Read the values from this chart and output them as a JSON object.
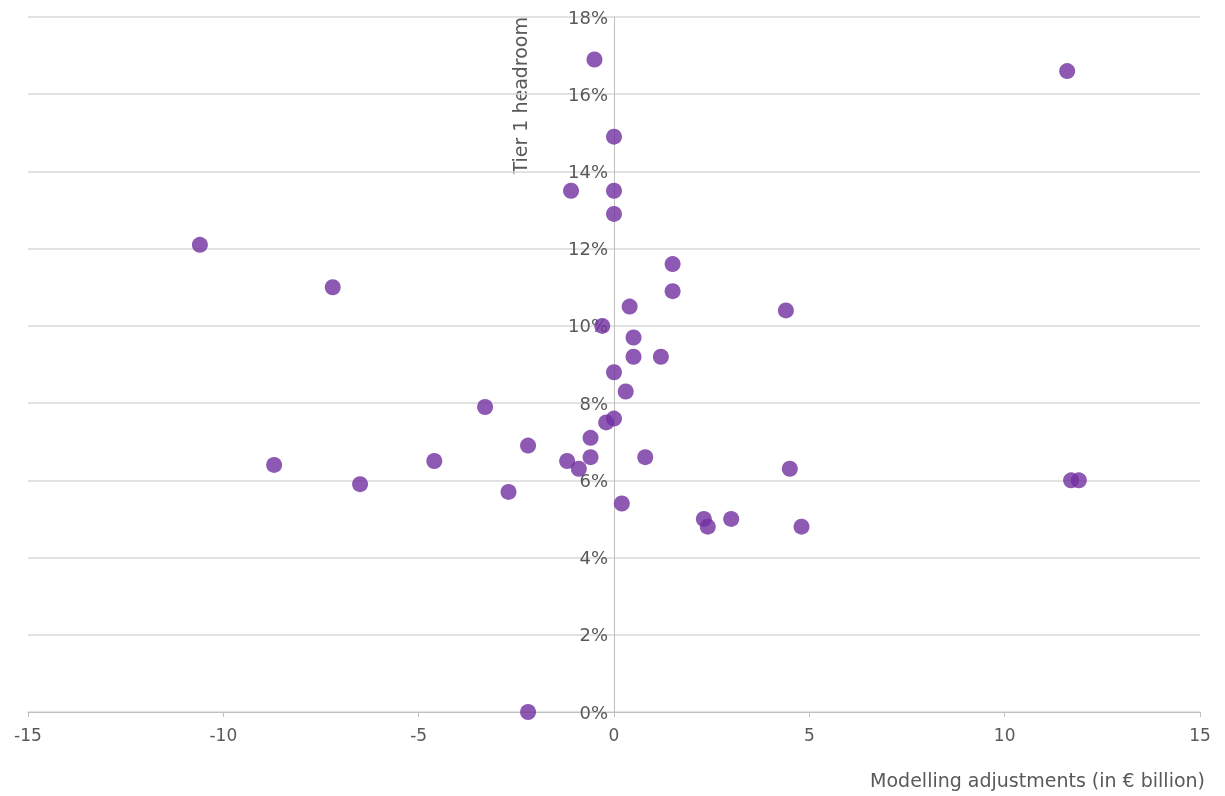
{
  "chart_data": {
    "type": "scatter",
    "xlabel": "Modelling adjustments (in € billion)",
    "ylabel": "Tier 1 headroom",
    "x": [
      -0.5,
      11.6,
      0,
      -1.1,
      0,
      0,
      -10.6,
      -7.2,
      1.5,
      1.5,
      0.4,
      4.4,
      -0.3,
      0.5,
      0.5,
      1.2,
      0,
      0.3,
      -3.3,
      0,
      -0.2,
      -0.6,
      -2.2,
      -0.6,
      0.8,
      -1.2,
      -0.9,
      -4.6,
      -8.7,
      4.5,
      -6.5,
      -2.7,
      0.2,
      2.3,
      3,
      2.4,
      4.8,
      11.7,
      11.9,
      -2.2
    ],
    "series": [
      {
        "color": "#7030a0",
        "values": [
          16.9,
          16.6,
          14.9,
          13.5,
          13.5,
          12.9,
          12.1,
          11,
          11.6,
          10.9,
          10.5,
          10.4,
          10,
          9.7,
          9.2,
          9.2,
          8.8,
          8.3,
          7.9,
          7.6,
          7.5,
          7.1,
          6.9,
          6.6,
          6.6,
          6.5,
          6.3,
          6.5,
          6.4,
          6.3,
          5.9,
          5.7,
          5.4,
          5,
          5,
          4.8,
          4.8,
          6,
          6,
          0
        ]
      }
    ],
    "xlim": [
      -15,
      15
    ],
    "xticks": [
      -15,
      -10,
      -5,
      0,
      5,
      10,
      15
    ],
    "ylim": [
      0,
      18
    ],
    "yticks": [
      {
        "value": 0,
        "label": "0%"
      },
      {
        "value": 2,
        "label": "2%"
      },
      {
        "value": 4,
        "label": "4%"
      },
      {
        "value": 6,
        "label": "6%"
      },
      {
        "value": 8,
        "label": "8%"
      },
      {
        "value": 10,
        "label": "10%"
      },
      {
        "value": 12,
        "label": "12%"
      },
      {
        "value": 14,
        "label": "14%"
      },
      {
        "value": 16,
        "label": "16%"
      },
      {
        "value": 18,
        "label": "18%"
      }
    ],
    "grid": "y",
    "marker": "circle"
  }
}
